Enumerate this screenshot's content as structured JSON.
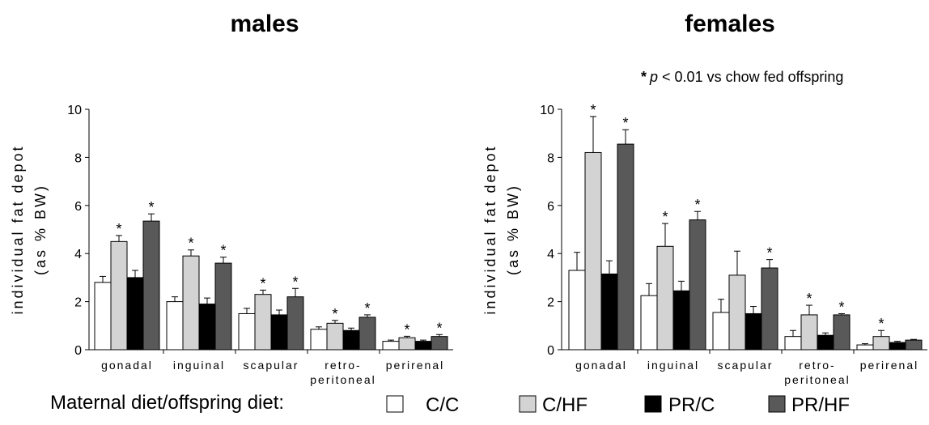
{
  "note": {
    "star": "*",
    "p": "p",
    "rest": " < 0.01 vs chow fed offspring"
  },
  "legend": {
    "title": "Maternal diet/offspring diet:",
    "colors": [
      "#ffffff",
      "#d3d3d3",
      "#000000",
      "#595959"
    ]
  },
  "chart_data": [
    {
      "type": "bar",
      "title": "males",
      "ylabel": [
        "individual fat depot",
        "(as % BW)"
      ],
      "ylim": [
        0,
        10
      ],
      "yticks": [
        "0",
        "2",
        "4",
        "6",
        "8",
        "10"
      ],
      "categories": [
        [
          "gonadal"
        ],
        [
          "inguinal"
        ],
        [
          "scapular"
        ],
        [
          "retro-",
          "peritoneal"
        ],
        [
          "perirenal"
        ]
      ],
      "series": [
        {
          "name": "C/C",
          "values": [
            2.8,
            2.0,
            1.5,
            0.85,
            0.35
          ],
          "errors": [
            0.25,
            0.2,
            0.22,
            0.1,
            0.05
          ],
          "sig": [
            false,
            false,
            false,
            false,
            false
          ]
        },
        {
          "name": "C/HF",
          "values": [
            4.5,
            3.9,
            2.3,
            1.1,
            0.5
          ],
          "errors": [
            0.25,
            0.25,
            0.18,
            0.12,
            0.06
          ],
          "sig": [
            true,
            true,
            true,
            true,
            true
          ]
        },
        {
          "name": "PR/C",
          "values": [
            3.0,
            1.9,
            1.45,
            0.8,
            0.35
          ],
          "errors": [
            0.3,
            0.25,
            0.2,
            0.1,
            0.05
          ],
          "sig": [
            false,
            false,
            false,
            false,
            false
          ]
        },
        {
          "name": "PR/HF",
          "values": [
            5.35,
            3.6,
            2.2,
            1.35,
            0.55
          ],
          "errors": [
            0.3,
            0.25,
            0.35,
            0.1,
            0.08
          ],
          "sig": [
            true,
            true,
            true,
            true,
            true
          ]
        }
      ]
    },
    {
      "type": "bar",
      "title": "females",
      "ylabel": [
        "individual fat depot",
        "(as % BW)"
      ],
      "ylim": [
        0,
        10
      ],
      "yticks": [
        "0",
        "2",
        "4",
        "6",
        "8",
        "10"
      ],
      "categories": [
        [
          "gonadal"
        ],
        [
          "inguinal"
        ],
        [
          "scapular"
        ],
        [
          "retro-",
          "peritoneal"
        ],
        [
          "perirenal"
        ]
      ],
      "series": [
        {
          "name": "C/C",
          "values": [
            3.3,
            2.25,
            1.55,
            0.55,
            0.2
          ],
          "errors": [
            0.75,
            0.5,
            0.55,
            0.25,
            0.05
          ],
          "sig": [
            false,
            false,
            false,
            false,
            false
          ]
        },
        {
          "name": "C/HF",
          "values": [
            8.2,
            4.3,
            3.1,
            1.45,
            0.55
          ],
          "errors": [
            1.5,
            0.95,
            1.0,
            0.4,
            0.25
          ],
          "sig": [
            true,
            true,
            false,
            true,
            true
          ]
        },
        {
          "name": "PR/C",
          "values": [
            3.15,
            2.45,
            1.5,
            0.6,
            0.3
          ],
          "errors": [
            0.55,
            0.4,
            0.3,
            0.1,
            0.05
          ],
          "sig": [
            false,
            false,
            false,
            false,
            false
          ]
        },
        {
          "name": "PR/HF",
          "values": [
            8.55,
            5.4,
            3.4,
            1.45,
            0.4
          ],
          "errors": [
            0.6,
            0.35,
            0.35,
            0.05,
            0.03
          ],
          "sig": [
            true,
            true,
            true,
            true,
            false
          ]
        }
      ]
    }
  ]
}
